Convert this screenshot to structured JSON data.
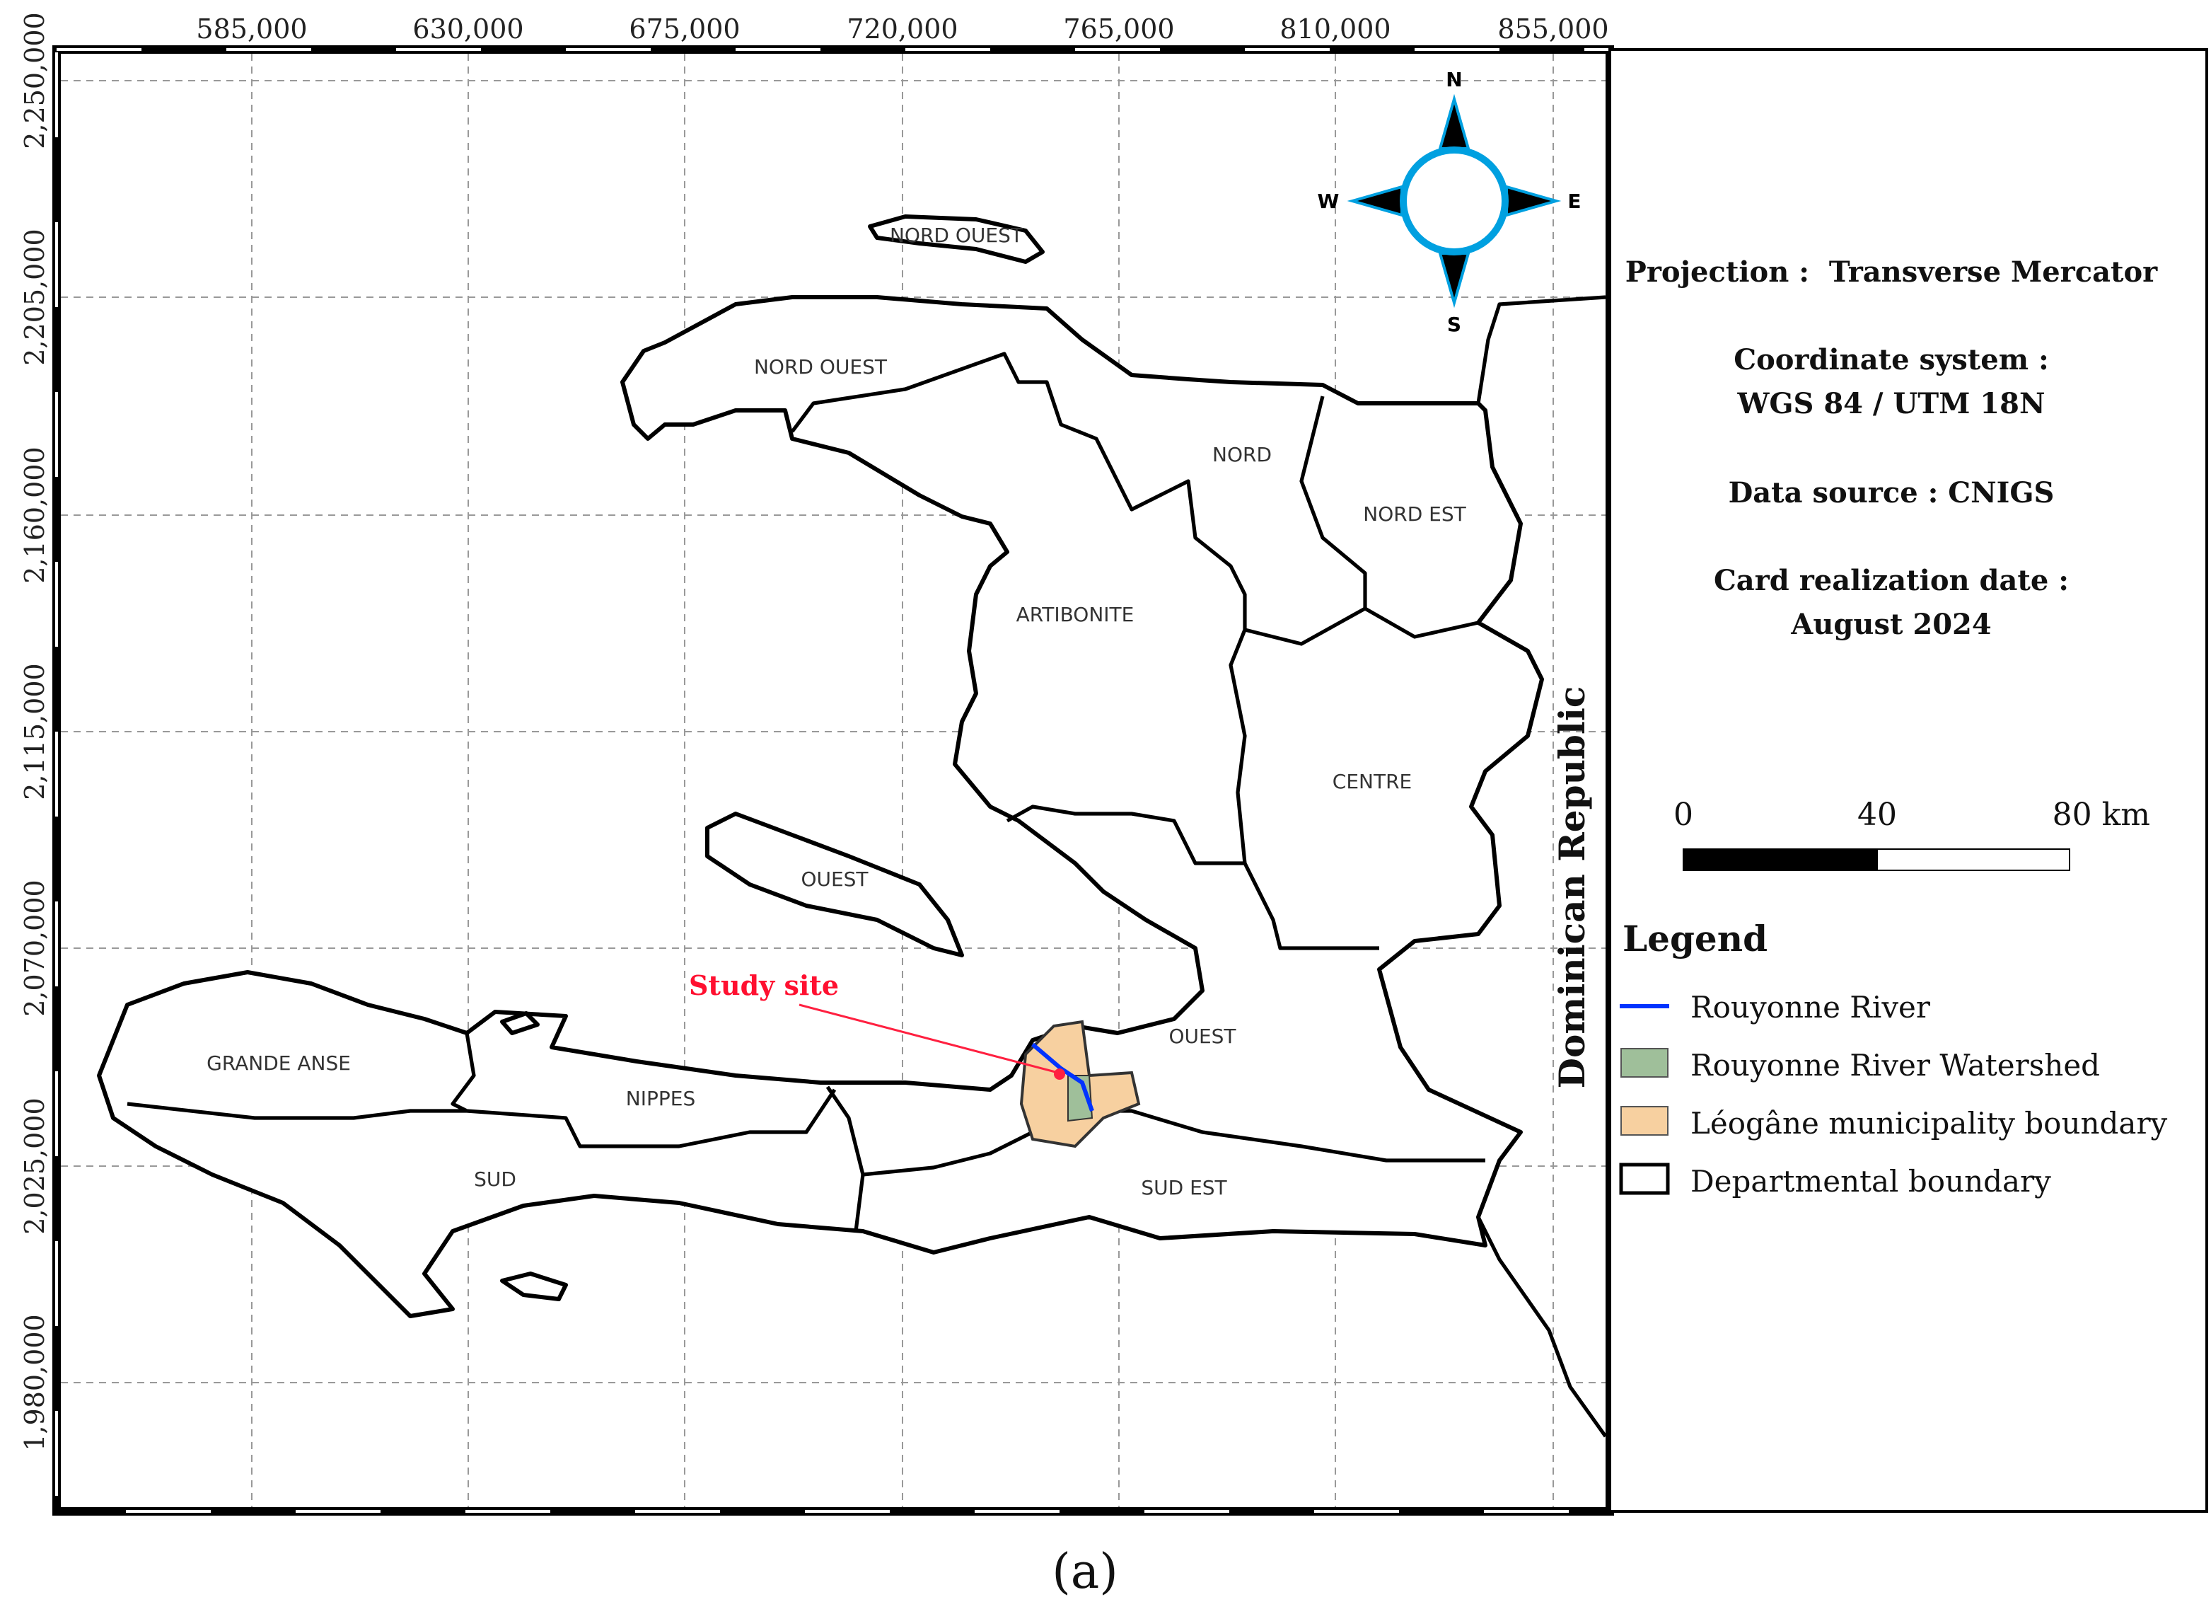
{
  "x_ticks": [
    "585,000",
    "630,000",
    "675,000",
    "720,000",
    "765,000",
    "810,000",
    "855,000"
  ],
  "y_ticks": [
    "2,250,000",
    "2,205,000",
    "2,160,000",
    "2,115,000",
    "2,070,000",
    "2,025,000",
    "1,980,000"
  ],
  "compass": {
    "n": "N",
    "e": "E",
    "s": "S",
    "w": "W"
  },
  "regions": [
    "NORD OUEST",
    "NORD OUEST",
    "NORD",
    "NORD EST",
    "ARTIBONITE",
    "CENTRE",
    "OUEST",
    "OUEST",
    "GRANDE ANSE",
    "NIPPES",
    "SUD",
    "SUD EST"
  ],
  "info": [
    "Projection :  Transverse Mercator",
    "Coordinate system :",
    "WGS 84 / UTM 18N",
    "Data source : CNIGS",
    "Card realization date :",
    "August 2024"
  ],
  "scale_bar": [
    "0",
    "40",
    "80 km"
  ],
  "legend": {
    "title": "Legend",
    "items": [
      "Rouyonne River",
      "Rouyonne River Watershed",
      "Léogâne municipality boundary",
      "Departmental boundary"
    ]
  },
  "annotations": {
    "study_site": "Study site",
    "country": "Dominican Republic"
  },
  "caption": "(a)"
}
